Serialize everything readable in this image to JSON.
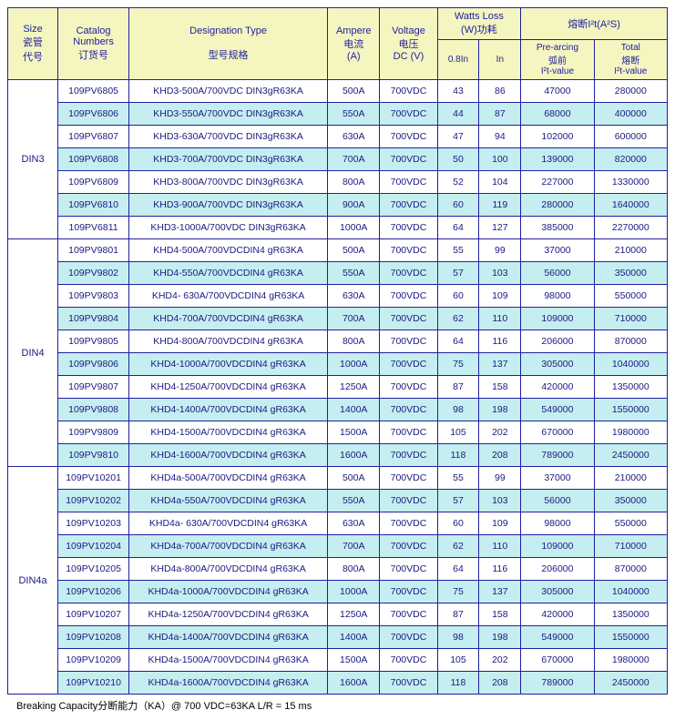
{
  "header": {
    "size": {
      "en": "Size",
      "cn1": "瓷管",
      "cn2": "代号"
    },
    "catalog": {
      "en": "Catalog",
      "en2": "Numbers",
      "cn": "订货号"
    },
    "designation": {
      "en": "Designation Type",
      "cn": "型号规格"
    },
    "ampere": {
      "en": "Ampere",
      "cn": "电流",
      "unit": "(A)"
    },
    "voltage": {
      "en": "Voltage",
      "cn": "电压",
      "unit": "DC (V)"
    },
    "watts": {
      "en": "Watts Loss",
      "cn": "(W)功耗",
      "c1": "0.8In",
      "c2": "In"
    },
    "i2t": {
      "en": "熔断I²t(A²S)",
      "pre1": "Pre-arcing",
      "pre2": "弧前",
      "pre3": "I²t-value",
      "tot1": "Total",
      "tot2": "熔断",
      "tot3": "I²t-value"
    }
  },
  "groups": [
    {
      "size": "DIN3",
      "rows": [
        {
          "cat": "109PV6805",
          "desig": "KHD3-500A/700VDC DIN3gR63KA",
          "amp": "500A",
          "volt": "700VDC",
          "w08": "43",
          "win": "86",
          "pre": "47000",
          "tot": "280000"
        },
        {
          "cat": "109PV6806",
          "desig": "KHD3-550A/700VDC DIN3gR63KA",
          "amp": "550A",
          "volt": "700VDC",
          "w08": "44",
          "win": "87",
          "pre": "68000",
          "tot": "400000"
        },
        {
          "cat": "109PV6807",
          "desig": "KHD3-630A/700VDC DIN3gR63KA",
          "amp": "630A",
          "volt": "700VDC",
          "w08": "47",
          "win": "94",
          "pre": "102000",
          "tot": "600000"
        },
        {
          "cat": "109PV6808",
          "desig": "KHD3-700A/700VDC DIN3gR63KA",
          "amp": "700A",
          "volt": "700VDC",
          "w08": "50",
          "win": "100",
          "pre": "139000",
          "tot": "820000"
        },
        {
          "cat": "109PV6809",
          "desig": "KHD3-800A/700VDC DIN3gR63KA",
          "amp": "800A",
          "volt": "700VDC",
          "w08": "52",
          "win": "104",
          "pre": "227000",
          "tot": "1330000"
        },
        {
          "cat": "109PV6810",
          "desig": "KHD3-900A/700VDC DIN3gR63KA",
          "amp": "900A",
          "volt": "700VDC",
          "w08": "60",
          "win": "119",
          "pre": "280000",
          "tot": "1640000"
        },
        {
          "cat": "109PV6811",
          "desig": "KHD3-1000A/700VDC DIN3gR63KA",
          "amp": "1000A",
          "volt": "700VDC",
          "w08": "64",
          "win": "127",
          "pre": "385000",
          "tot": "2270000"
        }
      ]
    },
    {
      "size": "DIN4",
      "rows": [
        {
          "cat": "109PV9801",
          "desig": "KHD4-500A/700VDCDIN4 gR63KA",
          "amp": "500A",
          "volt": "700VDC",
          "w08": "55",
          "win": "99",
          "pre": "37000",
          "tot": "210000"
        },
        {
          "cat": "109PV9802",
          "desig": "KHD4-550A/700VDCDIN4 gR63KA",
          "amp": "550A",
          "volt": "700VDC",
          "w08": "57",
          "win": "103",
          "pre": "56000",
          "tot": "350000"
        },
        {
          "cat": "109PV9803",
          "desig": "KHD4- 630A/700VDCDIN4 gR63KA",
          "amp": "630A",
          "volt": "700VDC",
          "w08": "60",
          "win": "109",
          "pre": "98000",
          "tot": "550000"
        },
        {
          "cat": "109PV9804",
          "desig": "KHD4-700A/700VDCDIN4 gR63KA",
          "amp": "700A",
          "volt": "700VDC",
          "w08": "62",
          "win": "110",
          "pre": "109000",
          "tot": "710000"
        },
        {
          "cat": "109PV9805",
          "desig": "KHD4-800A/700VDCDIN4 gR63KA",
          "amp": "800A",
          "volt": "700VDC",
          "w08": "64",
          "win": "116",
          "pre": "206000",
          "tot": "870000"
        },
        {
          "cat": "109PV9806",
          "desig": "KHD4-1000A/700VDCDIN4 gR63KA",
          "amp": "1000A",
          "volt": "700VDC",
          "w08": "75",
          "win": "137",
          "pre": "305000",
          "tot": "1040000"
        },
        {
          "cat": "109PV9807",
          "desig": "KHD4-1250A/700VDCDIN4 gR63KA",
          "amp": "1250A",
          "volt": "700VDC",
          "w08": "87",
          "win": "158",
          "pre": "420000",
          "tot": "1350000"
        },
        {
          "cat": "109PV9808",
          "desig": "KHD4-1400A/700VDCDIN4 gR63KA",
          "amp": "1400A",
          "volt": "700VDC",
          "w08": "98",
          "win": "198",
          "pre": "549000",
          "tot": "1550000"
        },
        {
          "cat": "109PV9809",
          "desig": "KHD4-1500A/700VDCDIN4 gR63KA",
          "amp": "1500A",
          "volt": "700VDC",
          "w08": "105",
          "win": "202",
          "pre": "670000",
          "tot": "1980000"
        },
        {
          "cat": "109PV9810",
          "desig": "KHD4-1600A/700VDCDIN4 gR63KA",
          "amp": "1600A",
          "volt": "700VDC",
          "w08": "118",
          "win": "208",
          "pre": "789000",
          "tot": "2450000"
        }
      ]
    },
    {
      "size": "DIN4a",
      "rows": [
        {
          "cat": "109PV10201",
          "desig": "KHD4a-500A/700VDCDIN4 gR63KA",
          "amp": "500A",
          "volt": "700VDC",
          "w08": "55",
          "win": "99",
          "pre": "37000",
          "tot": "210000"
        },
        {
          "cat": "109PV10202",
          "desig": "KHD4a-550A/700VDCDIN4 gR63KA",
          "amp": "550A",
          "volt": "700VDC",
          "w08": "57",
          "win": "103",
          "pre": "56000",
          "tot": "350000"
        },
        {
          "cat": "109PV10203",
          "desig": "KHD4a- 630A/700VDCDIN4 gR63KA",
          "amp": "630A",
          "volt": "700VDC",
          "w08": "60",
          "win": "109",
          "pre": "98000",
          "tot": "550000"
        },
        {
          "cat": "109PV10204",
          "desig": "KHD4a-700A/700VDCDIN4 gR63KA",
          "amp": "700A",
          "volt": "700VDC",
          "w08": "62",
          "win": "110",
          "pre": "109000",
          "tot": "710000"
        },
        {
          "cat": "109PV10205",
          "desig": "KHD4a-800A/700VDCDIN4 gR63KA",
          "amp": "800A",
          "volt": "700VDC",
          "w08": "64",
          "win": "116",
          "pre": "206000",
          "tot": "870000"
        },
        {
          "cat": "109PV10206",
          "desig": "KHD4a-1000A/700VDCDIN4 gR63KA",
          "amp": "1000A",
          "volt": "700VDC",
          "w08": "75",
          "win": "137",
          "pre": "305000",
          "tot": "1040000"
        },
        {
          "cat": "109PV10207",
          "desig": "KHD4a-1250A/700VDCDIN4 gR63KA",
          "amp": "1250A",
          "volt": "700VDC",
          "w08": "87",
          "win": "158",
          "pre": "420000",
          "tot": "1350000"
        },
        {
          "cat": "109PV10208",
          "desig": "KHD4a-1400A/700VDCDIN4 gR63KA",
          "amp": "1400A",
          "volt": "700VDC",
          "w08": "98",
          "win": "198",
          "pre": "549000",
          "tot": "1550000"
        },
        {
          "cat": "109PV10209",
          "desig": "KHD4a-1500A/700VDCDIN4 gR63KA",
          "amp": "1500A",
          "volt": "700VDC",
          "w08": "105",
          "win": "202",
          "pre": "670000",
          "tot": "1980000"
        },
        {
          "cat": "109PV10210",
          "desig": "KHD4a-1600A/700VDCDIN4 gR63KA",
          "amp": "1600A",
          "volt": "700VDC",
          "w08": "118",
          "win": "208",
          "pre": "789000",
          "tot": "2450000"
        }
      ]
    }
  ],
  "footnote": "Breaking Capacity分断能力（KA）@ 700 VDC=63KA    L/R = 15 ms"
}
